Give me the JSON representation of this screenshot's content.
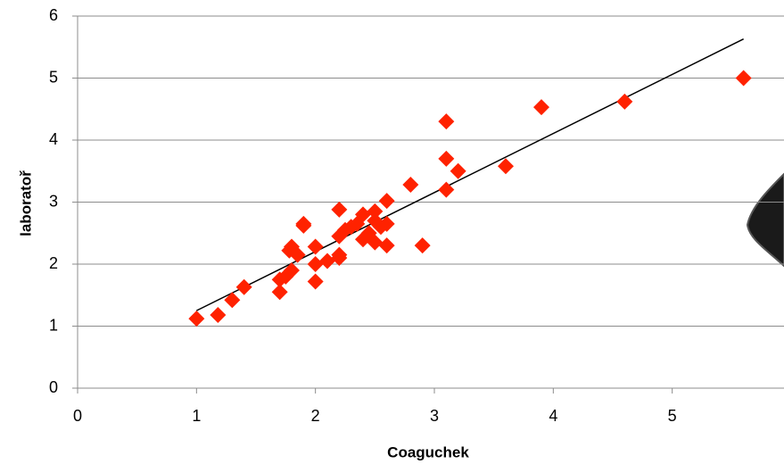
{
  "chart_data": {
    "type": "scatter",
    "x_label": "Coaguchek",
    "y_label": "laboratoř",
    "series": [
      {
        "color": "#ff2200",
        "x": [
          1.0,
          1.18,
          1.3,
          1.4,
          1.7,
          1.7,
          1.75,
          1.8,
          1.78,
          1.8,
          1.85,
          1.9,
          1.9,
          2.0,
          2.0,
          2.0,
          2.1,
          2.2,
          2.2,
          2.2,
          2.2,
          2.25,
          2.3,
          2.35,
          2.4,
          2.4,
          2.45,
          2.5,
          2.5,
          2.5,
          2.55,
          2.6,
          2.6,
          2.6,
          2.8,
          2.9,
          3.1,
          3.1,
          3.1,
          3.2,
          3.6,
          3.9,
          4.6,
          5.6
        ],
        "values": [
          1.12,
          1.18,
          1.42,
          1.63,
          1.55,
          1.75,
          1.8,
          1.9,
          2.22,
          2.28,
          2.15,
          2.62,
          2.65,
          2.28,
          2.0,
          1.72,
          2.05,
          2.1,
          2.15,
          2.45,
          2.88,
          2.55,
          2.6,
          2.65,
          2.8,
          2.4,
          2.5,
          2.7,
          2.35,
          2.85,
          2.6,
          2.3,
          2.65,
          3.02,
          3.28,
          2.3,
          3.2,
          3.7,
          4.3,
          3.5,
          3.58,
          4.53,
          4.62,
          5.0
        ]
      }
    ],
    "trendline": {
      "color": "#000000",
      "x": [
        1.0,
        5.6
      ],
      "values": [
        1.25,
        5.63
      ]
    },
    "xlim": [
      0,
      6
    ],
    "ylim": [
      0,
      6
    ],
    "xticks": [
      0,
      1,
      2,
      3,
      4,
      5
    ],
    "yticks": [
      0,
      1,
      2,
      3,
      4,
      5,
      6
    ],
    "grid": true
  }
}
